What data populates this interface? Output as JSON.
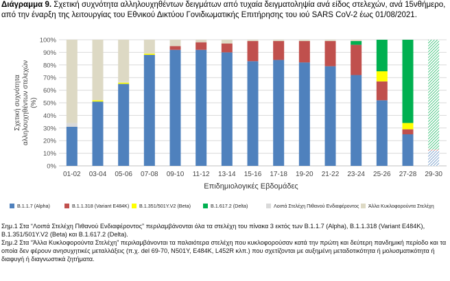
{
  "title": {
    "bold": "Διάγραμμα 9.",
    "text": "Σχετική συχνότητα αλληλουχηθέντων δειγμάτων από τυχαία δειγματοληψία ανά είδος στελεχών, ανά 15νθήμερο, από την έναρξη της λειτουργίας του Εθνικού Δικτύου Γονιδιωματικής Επιτήρησης του ιού SARS CoV-2 έως 01/08/2021."
  },
  "chart_data": {
    "type": "bar",
    "stacked": true,
    "percent": true,
    "xlabel": "Επιδημιολογικές Εβδομάδες",
    "ylabel": "Σχετική συχνότητα αλληλουχηθέντων στελεχών (%)",
    "ylim": [
      0,
      100
    ],
    "yticks": [
      "0%",
      "10%",
      "20%",
      "30%",
      "40%",
      "50%",
      "60%",
      "70%",
      "80%",
      "90%",
      "100%"
    ],
    "categories": [
      "01-02",
      "03-04",
      "05-06",
      "07-08",
      "09-10",
      "11-12",
      "13-14",
      "15-16",
      "17-18",
      "19-20",
      "21-22",
      "23-24",
      "25-26",
      "27-28",
      "29-30"
    ],
    "series": [
      {
        "name": "B.1.1.7 (Alpha)",
        "color": "#4f81bd",
        "values": [
          31,
          51,
          65,
          88,
          92,
          92,
          90,
          83,
          84,
          82,
          79,
          72,
          52,
          25,
          12
        ]
      },
      {
        "name": "B.1.1.318 (Variant E484K)",
        "color": "#c0504d",
        "values": [
          0,
          0,
          0,
          0,
          3,
          6,
          7,
          16,
          15,
          17,
          20,
          24,
          15,
          4,
          1
        ]
      },
      {
        "name": "B.1.351/501Y.V2 (Beta)",
        "color": "#ffff00",
        "values": [
          0,
          1,
          1,
          1,
          0,
          0,
          0,
          0,
          0,
          0,
          0,
          0,
          8,
          5,
          0
        ]
      },
      {
        "name": "B.1.617.2 (Delta)",
        "color": "#00b050",
        "values": [
          0,
          0,
          0,
          0,
          0,
          0,
          0,
          0,
          0,
          0,
          0,
          3,
          25,
          66,
          87
        ]
      },
      {
        "name": "Λοιπά Στελέχη Πιθανού Ενδιαφέροντος",
        "color": "#d9d9d9",
        "values": [
          3,
          0,
          1,
          0,
          0,
          0,
          0,
          0,
          0,
          0,
          0,
          0,
          0,
          0,
          0
        ]
      },
      {
        "name": "Άλλα Κυκλοφορούντα Στελέχη",
        "color": "#ddd9c4",
        "values": [
          66,
          48,
          33,
          11,
          5,
          2,
          3,
          1,
          1,
          1,
          1,
          1,
          0,
          0,
          0
        ]
      }
    ]
  },
  "notes": [
    "Σημ.1 Στα “Λοιπά Στελέχη Πιθανού Ενδιαφέροντος” περιλαμβάνονται όλα τα στελέχη του πίνακα 3 εκτός των B.1.1.7 (Alpha), B.1.1.318 (Variant E484K), B.1.351/501Y.V2 (Beta) και B.1.617.2 (Delta).",
    "Σημ.2 Στα “Άλλα Κυκλοφορούντα Στελέχη” περιλαμβάνονται τα παλαιότερα στελέχη που κυκλοφορούσαν κατά την πρώτη και δεύτερη πανδημική περίοδο και τα οποία δεν φέρουν ανησυχητικές μεταλλάξεις (π.χ. del 69-70, N501Y, E484K, L452R κλπ.) που σχετίζονται με αυξημένη μεταδοτικότητα ή μολυσματικότητα ή διαφυγή ή διαγνωστικά ζητήματα."
  ]
}
